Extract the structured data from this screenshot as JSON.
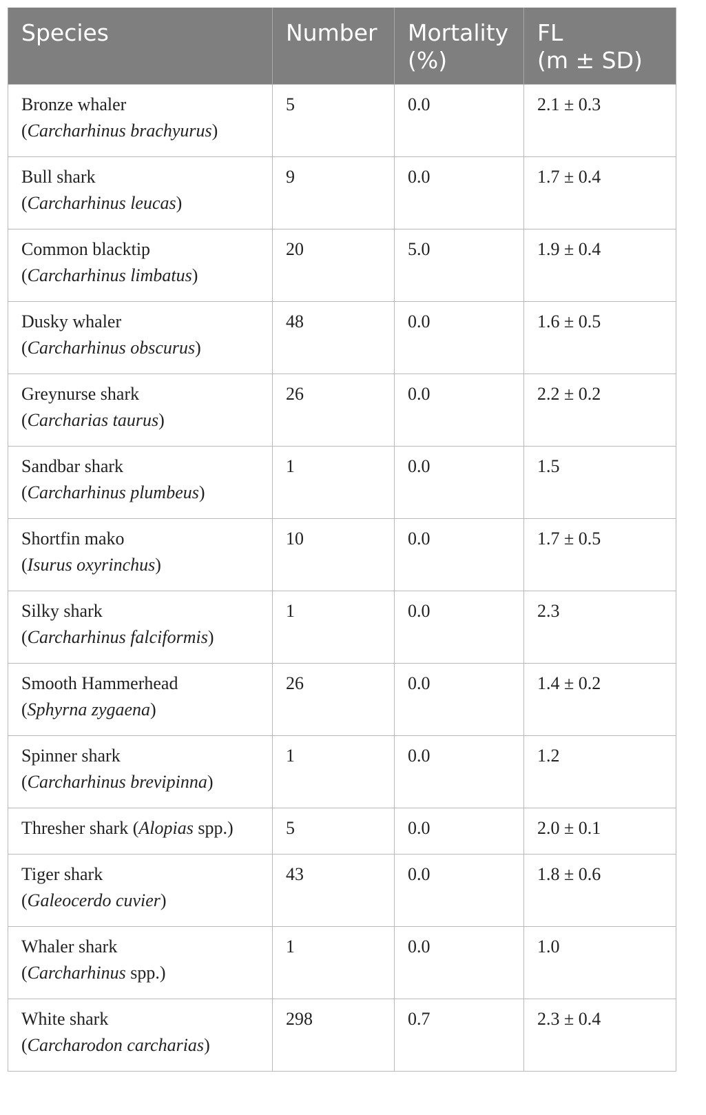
{
  "table": {
    "headers": {
      "species": "Species",
      "number": "Number",
      "mortality_line1": "Mortality",
      "mortality_line2": "(%)",
      "fl_line1": "FL",
      "fl_line2": "(m ± SD)"
    },
    "rows": [
      {
        "common": "Bronze whaler",
        "open": "(",
        "sci": "Carcharhinus brachyurus",
        "close": ")",
        "number": "5",
        "mortality": "0.0",
        "fl": "2.1 ± 0.3"
      },
      {
        "common": "Bull shark",
        "open": "(",
        "sci": "Carcharhinus leucas",
        "close": ")",
        "number": "9",
        "mortality": "0.0",
        "fl": "1.7 ± 0.4"
      },
      {
        "common": "Common blacktip",
        "open": "(",
        "sci": "Carcharhinus limbatus",
        "close": ")",
        "number": "20",
        "mortality": "5.0",
        "fl": "1.9 ± 0.4"
      },
      {
        "common": "Dusky whaler",
        "open": "(",
        "sci": "Carcharhinus obscurus",
        "close": ")",
        "number": "48",
        "mortality": "0.0",
        "fl": "1.6 ± 0.5"
      },
      {
        "common": "Greynurse shark",
        "open": "(",
        "sci": "Carcharias taurus",
        "close": ")",
        "number": "26",
        "mortality": "0.0",
        "fl": "2.2 ± 0.2"
      },
      {
        "common": "Sandbar shark",
        "open": "(",
        "sci": "Carcharhinus plumbeus",
        "close": ")",
        "number": "1",
        "mortality": "0.0",
        "fl": "1.5"
      },
      {
        "common": "Shortfin mako",
        "open": "(",
        "sci": "Isurus oxyrinchus",
        "close": ")",
        "number": "10",
        "mortality": "0.0",
        "fl": "1.7 ± 0.5"
      },
      {
        "common": "Silky shark",
        "open": "(",
        "sci": "Carcharhinus falciformis",
        "close": ")",
        "number": "1",
        "mortality": "0.0",
        "fl": "2.3"
      },
      {
        "common": "Smooth Hammerhead",
        "open": "(",
        "sci": "Sphyrna zygaena",
        "close": ")",
        "number": "26",
        "mortality": "0.0",
        "fl": "1.4 ± 0.2"
      },
      {
        "common": "Spinner shark",
        "open": "(",
        "sci": "Carcharhinus brevipinna",
        "close": ")",
        "number": "1",
        "mortality": "0.0",
        "fl": "1.2"
      },
      {
        "common": "Thresher shark (",
        "sci": "Alopias",
        "close": " spp.)",
        "number": "5",
        "mortality": "0.0",
        "fl": "2.0 ± 0.1",
        "inline": true
      },
      {
        "common": "Tiger shark",
        "open": "(",
        "sci": "Galeocerdo cuvier",
        "close": ")",
        "number": "43",
        "mortality": "0.0",
        "fl": "1.8 ± 0.6"
      },
      {
        "common": "Whaler shark",
        "open": "(",
        "sci": "Carcharhinus",
        "close": " spp.)",
        "number": "1",
        "mortality": "0.0",
        "fl": "1.0"
      },
      {
        "common": "White shark",
        "open": "(",
        "sci": "Carcharodon carcharias",
        "close": ")",
        "number": "298",
        "mortality": "0.7",
        "fl": "2.3 ± 0.4"
      }
    ]
  },
  "colors": {
    "header_bg": "#7f7f7f",
    "header_text": "#ffffff",
    "border": "#b8b8b8",
    "body_text": "#222222"
  }
}
